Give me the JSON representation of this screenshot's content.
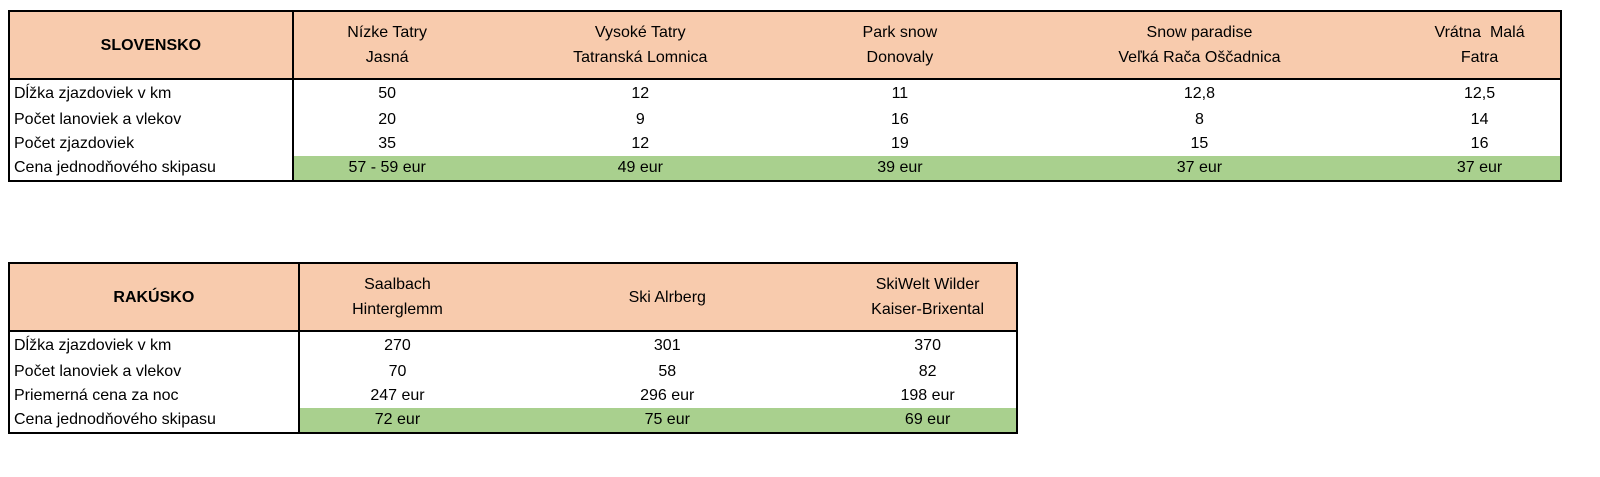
{
  "slovensko": {
    "title": "SLOVENSKO",
    "columns": [
      [
        "Nízke Tatry",
        "Jasná"
      ],
      [
        "Vysoké Tatry",
        "Tatranská Lomnica"
      ],
      [
        "Park snow",
        "Donovaly"
      ],
      [
        "Snow paradise",
        "Veľká Rača Oščadnica"
      ],
      [
        "Vrátna  Malá",
        "Fatra"
      ]
    ],
    "rows": [
      {
        "label": "Dĺžka zjazdoviek v km",
        "values": [
          "50",
          "12",
          "11",
          "12,8",
          "12,5"
        ]
      },
      {
        "label": "Počet lanoviek a vlekov",
        "values": [
          "20",
          "9",
          "16",
          "8",
          "14"
        ]
      },
      {
        "label": "Počet zjazdoviek",
        "values": [
          "35",
          "12",
          "19",
          "15",
          "16"
        ]
      },
      {
        "label": "Cena jednodňového skipasu",
        "values": [
          "57 - 59 eur",
          "49 eur",
          "39 eur",
          "37 eur",
          "37 eur"
        ]
      }
    ]
  },
  "rakusko": {
    "title": "RAKÚSKO",
    "columns": [
      [
        "Saalbach",
        "Hinterglemm"
      ],
      [
        "Ski Alrberg"
      ],
      [
        "SkiWelt Wilder",
        "Kaiser-Brixental"
      ]
    ],
    "rows": [
      {
        "label": "Dĺžka zjazdoviek v km",
        "values": [
          "270",
          "301",
          "370"
        ]
      },
      {
        "label": "Počet lanoviek a vlekov",
        "values": [
          "70",
          "58",
          "82"
        ]
      },
      {
        "label": "Priemerná cena za noc",
        "values": [
          "247 eur",
          "296 eur",
          "198 eur"
        ]
      },
      {
        "label": "Cena jednodňového skipasu",
        "values": [
          "72 eur",
          "75 eur",
          "69 eur"
        ]
      }
    ]
  },
  "colors": {
    "header": "#f8cbad",
    "price_highlight": "#a9d08e"
  }
}
